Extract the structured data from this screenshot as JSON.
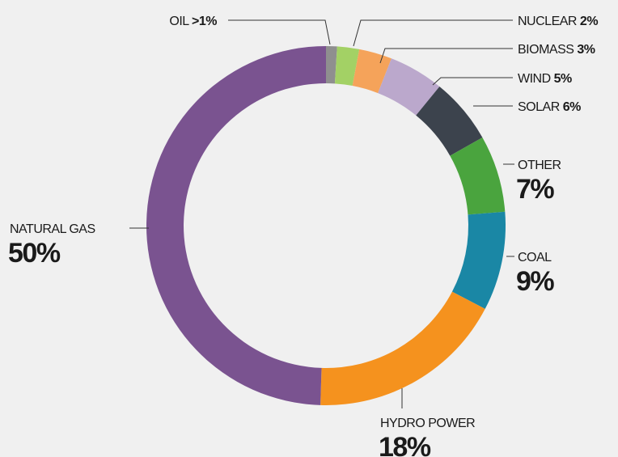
{
  "chart_data": {
    "type": "donut",
    "categories": [
      "OIL",
      "NUCLEAR",
      "BIOMASS",
      "WIND",
      "SOLAR",
      "OTHER",
      "COAL",
      "HYDRO POWER",
      "NATURAL GAS"
    ],
    "values": [
      1,
      2,
      3,
      5,
      6,
      7,
      9,
      18,
      50
    ],
    "value_labels": [
      ">1%",
      "2%",
      "3%",
      "5%",
      "6%",
      "7%",
      "9%",
      "18%",
      "50%"
    ],
    "colors": [
      "#8f8f8f",
      "#a3d165",
      "#f5a35a",
      "#bba8cc",
      "#3c434d",
      "#4aa43e",
      "#1a87a5",
      "#f5921e",
      "#7a5390"
    ]
  }
}
